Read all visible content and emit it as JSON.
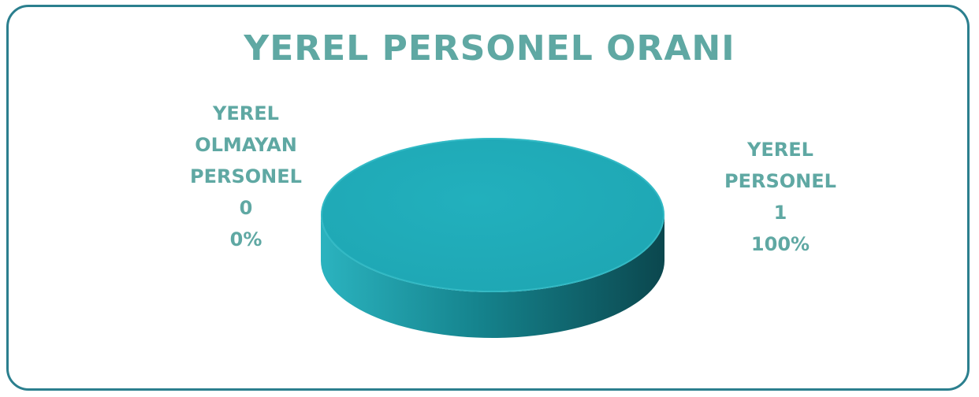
{
  "chart_data": {
    "type": "pie",
    "title": "YEREL PERSONEL ORANI",
    "slices": [
      {
        "name_lines": [
          "YEREL",
          "OLMAYAN",
          "PERSONEL"
        ],
        "value": 0,
        "percent": "0%"
      },
      {
        "name_lines": [
          "YEREL",
          "PERSONEL"
        ],
        "value": 1,
        "percent": "100%"
      }
    ],
    "colors": {
      "slice_top": "#21aebb",
      "slice_side": "#15848e",
      "slice_side_dark": "#0d4f56",
      "text": "#5fa8a3",
      "border": "#2b7f8e"
    }
  }
}
